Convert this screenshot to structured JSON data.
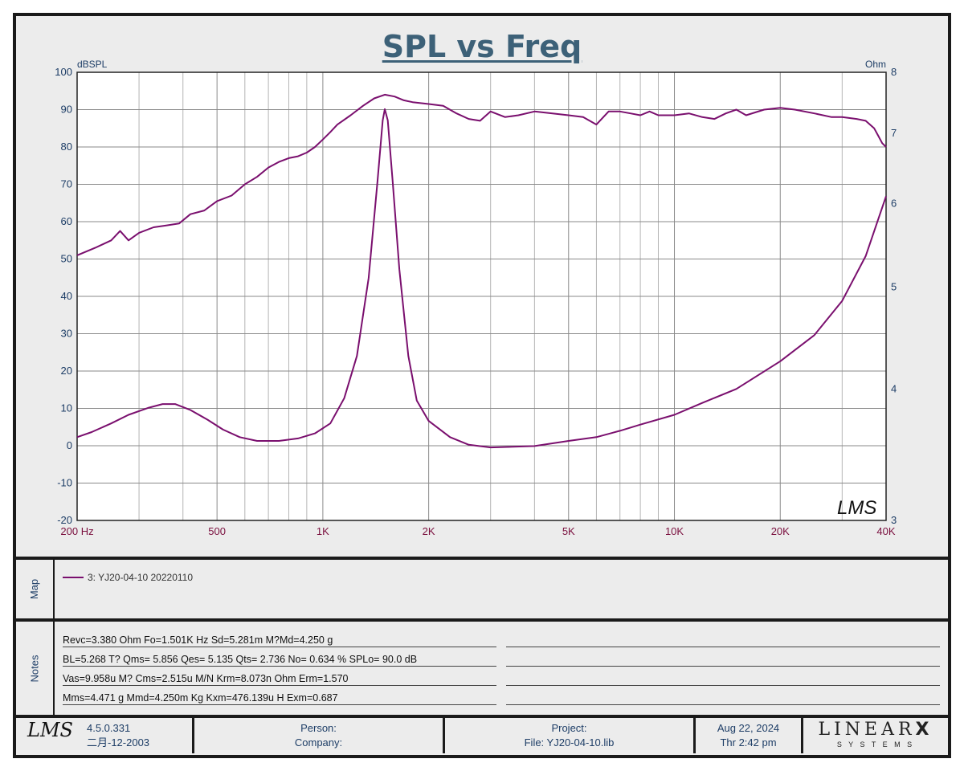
{
  "title": "SPL vs Freq",
  "chart_data": {
    "type": "line",
    "title": "SPL vs Freq",
    "xscale": "log",
    "xlim": [
      200,
      40000
    ],
    "x_ticks": [
      {
        "value": 200,
        "label": "200  Hz"
      },
      {
        "value": 500,
        "label": "500"
      },
      {
        "value": 1000,
        "label": "1K"
      },
      {
        "value": 2000,
        "label": "2K"
      },
      {
        "value": 5000,
        "label": "5K"
      },
      {
        "value": 10000,
        "label": "10K"
      },
      {
        "value": 20000,
        "label": "20K"
      },
      {
        "value": 40000,
        "label": "40K"
      }
    ],
    "y_left": {
      "label": "dBSPL",
      "min": -20,
      "max": 100,
      "ticks": [
        "100",
        "90",
        "80",
        "70",
        "60",
        "50",
        "40",
        "30",
        "20",
        "10",
        "0",
        "-10",
        "-20"
      ]
    },
    "y_right": {
      "label": "Ohm",
      "scale": "log",
      "min": 3,
      "max": 8,
      "ticks": [
        "8",
        "7",
        "6",
        "5",
        "4",
        "3"
      ]
    },
    "grid": true,
    "color": "#7a0f6e",
    "series": [
      {
        "name": "SPL",
        "axis": "left",
        "points": [
          [
            200,
            51
          ],
          [
            225,
            53
          ],
          [
            250,
            55
          ],
          [
            265,
            57.5
          ],
          [
            280,
            55
          ],
          [
            300,
            57
          ],
          [
            330,
            58.5
          ],
          [
            360,
            59
          ],
          [
            390,
            59.5
          ],
          [
            420,
            62
          ],
          [
            460,
            63
          ],
          [
            500,
            65.5
          ],
          [
            550,
            67
          ],
          [
            600,
            70
          ],
          [
            650,
            72
          ],
          [
            700,
            74.5
          ],
          [
            750,
            76
          ],
          [
            800,
            77
          ],
          [
            850,
            77.5
          ],
          [
            900,
            78.5
          ],
          [
            950,
            80
          ],
          [
            1000,
            82
          ],
          [
            1050,
            84
          ],
          [
            1100,
            86
          ],
          [
            1200,
            88.5
          ],
          [
            1300,
            91
          ],
          [
            1400,
            93
          ],
          [
            1500,
            94
          ],
          [
            1600,
            93.5
          ],
          [
            1700,
            92.5
          ],
          [
            1800,
            92
          ],
          [
            2000,
            91.5
          ],
          [
            2200,
            91
          ],
          [
            2400,
            89
          ],
          [
            2600,
            87.5
          ],
          [
            2800,
            87
          ],
          [
            3000,
            89.5
          ],
          [
            3300,
            88
          ],
          [
            3600,
            88.5
          ],
          [
            4000,
            89.5
          ],
          [
            4500,
            89
          ],
          [
            5000,
            88.5
          ],
          [
            5500,
            88
          ],
          [
            6000,
            86
          ],
          [
            6500,
            89.5
          ],
          [
            7000,
            89.5
          ],
          [
            7500,
            89
          ],
          [
            8000,
            88.5
          ],
          [
            8500,
            89.5
          ],
          [
            9000,
            88.5
          ],
          [
            10000,
            88.5
          ],
          [
            11000,
            89
          ],
          [
            12000,
            88
          ],
          [
            13000,
            87.5
          ],
          [
            14000,
            89
          ],
          [
            15000,
            90
          ],
          [
            16000,
            88.5
          ],
          [
            18000,
            90
          ],
          [
            20000,
            90.5
          ],
          [
            22000,
            90
          ],
          [
            25000,
            89
          ],
          [
            28000,
            88
          ],
          [
            30000,
            88
          ],
          [
            33000,
            87.5
          ],
          [
            35000,
            87
          ],
          [
            37000,
            85
          ],
          [
            38000,
            83
          ],
          [
            39000,
            81
          ],
          [
            40000,
            80
          ]
        ]
      },
      {
        "name": "Impedance",
        "axis": "right",
        "points": [
          [
            200,
            3.6
          ],
          [
            220,
            3.64
          ],
          [
            250,
            3.71
          ],
          [
            280,
            3.78
          ],
          [
            320,
            3.84
          ],
          [
            350,
            3.87
          ],
          [
            380,
            3.87
          ],
          [
            420,
            3.82
          ],
          [
            470,
            3.74
          ],
          [
            520,
            3.66
          ],
          [
            580,
            3.6
          ],
          [
            650,
            3.57
          ],
          [
            750,
            3.57
          ],
          [
            850,
            3.59
          ],
          [
            950,
            3.63
          ],
          [
            1050,
            3.71
          ],
          [
            1150,
            3.92
          ],
          [
            1250,
            4.3
          ],
          [
            1350,
            5.1
          ],
          [
            1430,
            6.3
          ],
          [
            1480,
            7.2
          ],
          [
            1500,
            7.38
          ],
          [
            1530,
            7.2
          ],
          [
            1580,
            6.3
          ],
          [
            1650,
            5.2
          ],
          [
            1750,
            4.3
          ],
          [
            1850,
            3.9
          ],
          [
            2000,
            3.73
          ],
          [
            2300,
            3.6
          ],
          [
            2600,
            3.54
          ],
          [
            3000,
            3.52
          ],
          [
            4000,
            3.53
          ],
          [
            5000,
            3.57
          ],
          [
            6000,
            3.6
          ],
          [
            7000,
            3.65
          ],
          [
            8000,
            3.7
          ],
          [
            10000,
            3.78
          ],
          [
            12000,
            3.88
          ],
          [
            15000,
            4.0
          ],
          [
            20000,
            4.25
          ],
          [
            25000,
            4.5
          ],
          [
            30000,
            4.85
          ],
          [
            35000,
            5.35
          ],
          [
            40000,
            6.1
          ]
        ]
      }
    ],
    "legend": {
      "position": "map-panel",
      "entries": [
        "3: YJ20-04-10 20220110"
      ]
    }
  },
  "watermark": "LMS",
  "map": {
    "label": "Map",
    "legend_text": "3: YJ20-04-10 20220110"
  },
  "notes": {
    "label": "Notes",
    "lines": [
      "Revc=3.380 Ohm  Fo=1.501K Hz  Sd=5.281m M?Md=4.250 g",
      "BL=5.268 T?  Qms= 5.856  Qes= 5.135  Qts= 2.736  No= 0.634 %  SPLo= 90.0 dB",
      "Vas=9.958u M? Cms=2.515u M/N  Krm=8.073n Ohm  Erm=1.570",
      "Mms=4.471 g  Mmd=4.250m Kg  Kxm=476.139u H  Exm=0.687"
    ]
  },
  "footer": {
    "logo": "LMS",
    "version": "4.5.0.331",
    "version_date": "二月-12-2003",
    "person": "Person:",
    "company": "Company:",
    "project": "Project:",
    "file": "File: YJ20-04-10.lib",
    "date": "Aug 22, 2024",
    "time": "Thr  2:42 pm",
    "brand": "LINEAR",
    "brand_x": "X",
    "brand_sub": "S  Y  S  T  E  M  S"
  }
}
